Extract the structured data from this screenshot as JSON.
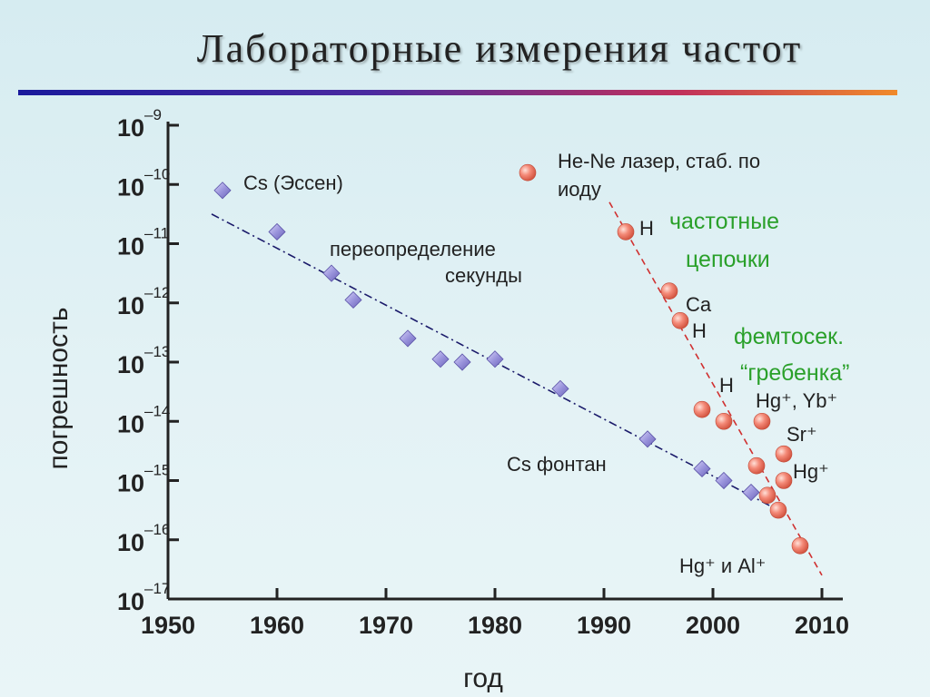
{
  "slide": {
    "title": "Лабораторные измерения частот"
  },
  "chart_data": {
    "type": "scatter",
    "title": "Лабораторные измерения частот",
    "xlabel": "год",
    "ylabel": "погрешность",
    "xlim": [
      1950,
      2010
    ],
    "ylim_exponent": [
      -17,
      -9
    ],
    "x_ticks": [
      "1950",
      "1960",
      "1970",
      "1980",
      "1990",
      "2000",
      "2010"
    ],
    "y_ticks": [
      {
        "base": "10",
        "exp": "–9"
      },
      {
        "base": "10",
        "exp": "–10"
      },
      {
        "base": "10",
        "exp": "–11"
      },
      {
        "base": "10",
        "exp": "–12"
      },
      {
        "base": "10",
        "exp": "–13"
      },
      {
        "base": "10",
        "exp": "–14"
      },
      {
        "base": "10",
        "exp": "–15"
      },
      {
        "base": "10",
        "exp": "–16"
      },
      {
        "base": "10",
        "exp": "–17"
      }
    ],
    "series": [
      {
        "marker": "diamond",
        "color": "#8e88d4",
        "points": [
          [
            1955,
            -10.1
          ],
          [
            1960,
            -10.8
          ],
          [
            1965,
            -11.5
          ],
          [
            1967,
            -11.95
          ],
          [
            1972,
            -12.6
          ],
          [
            1975,
            -12.95
          ],
          [
            1977,
            -13.0
          ],
          [
            1980,
            -12.95
          ],
          [
            1986,
            -13.45
          ],
          [
            1994,
            -14.3
          ],
          [
            1999,
            -14.8
          ],
          [
            2001,
            -15.0
          ],
          [
            2003.5,
            -15.2
          ]
        ],
        "trend": [
          [
            1954,
            -10.5
          ],
          [
            2006,
            -15.5
          ]
        ]
      },
      {
        "marker": "circle",
        "color": "#f08070",
        "points": [
          [
            1983,
            -9.8
          ],
          [
            1992,
            -10.8
          ],
          [
            1996,
            -11.8
          ],
          [
            1997,
            -12.3
          ],
          [
            1999,
            -13.8
          ],
          [
            2001,
            -14.0
          ],
          [
            2004,
            -14.75
          ],
          [
            2005,
            -15.25
          ],
          [
            2006,
            -15.5
          ],
          [
            2004.5,
            -14.0
          ],
          [
            2006.5,
            -14.55
          ],
          [
            2006.5,
            -15.0
          ],
          [
            2008,
            -16.1
          ]
        ],
        "trend": [
          [
            1990.5,
            -10.3
          ],
          [
            2010,
            -16.6
          ]
        ]
      }
    ],
    "annotations": [
      {
        "text": "Cs (Эссен)",
        "color": "#222222"
      },
      {
        "text": "переопределение",
        "color": "#222222"
      },
      {
        "text": "секунды",
        "color": "#222222"
      },
      {
        "text": "Cs фонтан",
        "color": "#222222"
      },
      {
        "text": "He-Ne лазер, стаб. по",
        "color": "#222222"
      },
      {
        "text": "иоду",
        "color": "#222222"
      },
      {
        "text": "H",
        "color": "#222222"
      },
      {
        "text": "частотные",
        "color": "#2aa02a"
      },
      {
        "text": "цепочки",
        "color": "#2aa02a"
      },
      {
        "text": "Ca",
        "color": "#222222"
      },
      {
        "text": "H",
        "color": "#222222"
      },
      {
        "text": "фемтосек.",
        "color": "#2aa02a"
      },
      {
        "text": "“гребенка”",
        "color": "#2aa02a"
      },
      {
        "text": "H",
        "color": "#222222"
      },
      {
        "text": "Hg⁺, Yb⁺",
        "color": "#222222"
      },
      {
        "text": "Sr⁺",
        "color": "#222222"
      },
      {
        "text": "Hg⁺",
        "color": "#222222"
      },
      {
        "text": "Hg⁺ и Al⁺",
        "color": "#222222"
      }
    ]
  }
}
